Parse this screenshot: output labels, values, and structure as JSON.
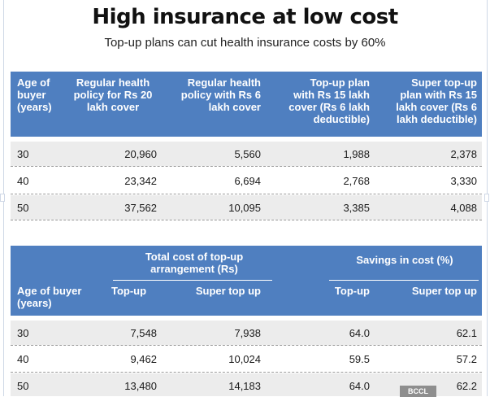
{
  "title": "High insurance at low cost",
  "subtitle": "Top-up plans can cut health insurance costs by 60%",
  "table1": {
    "headers": [
      "Age of buyer (years)",
      "Regular health policy for Rs 20 lakh cover",
      "Regular health policy with Rs 6 lakh cover",
      "Top-up plan with Rs 15 lakh cover (Rs 6 lakh deductible)",
      "Super top-up plan with Rs 15 lakh cover (Rs 6 lakh deductible)"
    ],
    "header_lines": [
      [
        "Age of",
        "buyer",
        "(years)"
      ],
      [
        "Regular health",
        "policy for Rs 20",
        "lakh cover"
      ],
      [
        "Regular health",
        "policy with Rs 6",
        "lakh cover"
      ],
      [
        "Top-up plan",
        "with Rs 15 lakh",
        "cover (Rs 6 lakh",
        "deductible)"
      ],
      [
        "Super top-up",
        "plan with Rs 15",
        "lakh cover (Rs 6",
        "lakh deductible)"
      ]
    ],
    "rows": [
      [
        "30",
        "20,960",
        "5,560",
        "1,988",
        "2,378"
      ],
      [
        "40",
        "23,342",
        "6,694",
        "2,768",
        "3,330"
      ],
      [
        "50",
        "37,562",
        "10,095",
        "3,385",
        "4,088"
      ]
    ]
  },
  "table2": {
    "group_total": [
      "Total cost of top-up",
      "arrangement (Rs)"
    ],
    "group_savings": "Savings in cost (%)",
    "age_header": [
      "Age of buyer",
      "(years)"
    ],
    "sub_headers": [
      "Top-up",
      "Super top up",
      "Top-up",
      "Super top up"
    ],
    "rows": [
      [
        "30",
        "7,548",
        "7,938",
        "64.0",
        "62.1"
      ],
      [
        "40",
        "9,462",
        "10,024",
        "59.5",
        "57.2"
      ],
      [
        "50",
        "13,480",
        "14,183",
        "64.0",
        "62.2"
      ]
    ]
  },
  "watermark": "BCCL"
}
